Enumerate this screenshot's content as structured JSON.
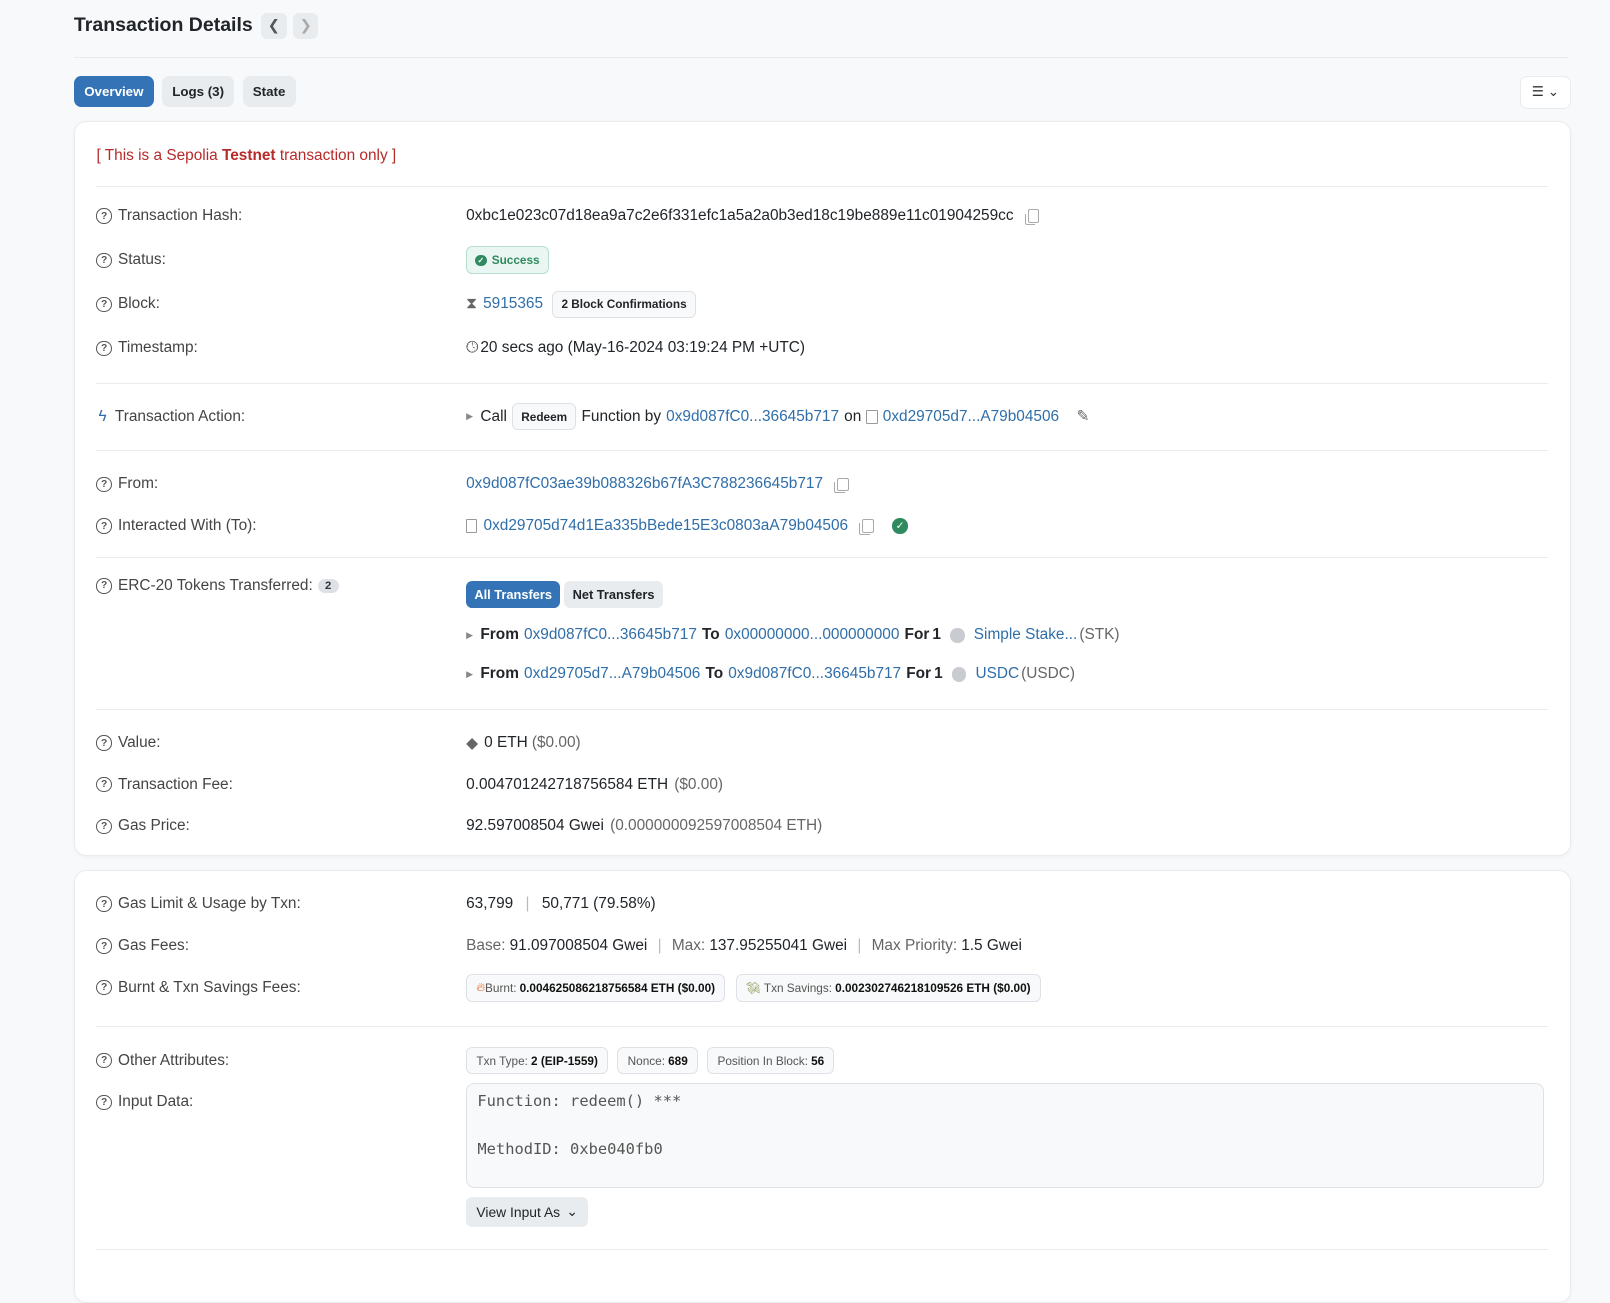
{
  "header": {
    "title": "Transaction Details",
    "prev_icon": "chevron-left-icon",
    "next_icon": "chevron-right-icon"
  },
  "tabs": [
    {
      "label": "Overview",
      "active": true
    },
    {
      "label": "Logs (3)"
    },
    {
      "label": "State"
    }
  ],
  "notice": {
    "prefix": "[ This is a Sepolia ",
    "bold": "Testnet",
    "suffix": " transaction only ]"
  },
  "overview": {
    "hash": {
      "label": "Transaction Hash:",
      "value": "0xbc1e023c07d18ea9a7c2e6f331efc1a5a2a0b3ed18c19be889e11c01904259cc"
    },
    "status": {
      "label": "Status:",
      "value": "Success"
    },
    "block": {
      "label": "Block:",
      "number": "5915365",
      "confirmations": "2 Block Confirmations"
    },
    "timestamp": {
      "label": "Timestamp:",
      "value": "20 secs ago (May-16-2024 03:19:24 PM +UTC)"
    },
    "action": {
      "label": "Transaction Action:",
      "call": "Call",
      "method": "Redeem",
      "function_by": "Function by",
      "from": "0x9d087fC0...36645b717",
      "on": "on",
      "contract": "0xd29705d7...A79b04506"
    },
    "from": {
      "label": "From:",
      "value": "0x9d087fC03ae39b088326b67fA3C788236645b717"
    },
    "to": {
      "label": "Interacted With (To):",
      "value": "0xd29705d74d1Ea335bBede15E3c0803aA79b04506"
    },
    "erc20": {
      "label": "ERC-20 Tokens Transferred:",
      "count": "2",
      "all": "All Transfers",
      "net": "Net Transfers",
      "transfers": [
        {
          "from_lbl": "From",
          "from": "0x9d087fC0...36645b717",
          "to_lbl": "To",
          "to": "0x00000000...000000000",
          "for_lbl": "For",
          "amount": "1",
          "token": "Simple Stake...",
          "symbol": "(STK)"
        },
        {
          "from_lbl": "From",
          "from": "0xd29705d7...A79b04506",
          "to_lbl": "To",
          "to": "0x9d087fC0...36645b717",
          "for_lbl": "For",
          "amount": "1",
          "token": "USDC",
          "symbol": "(USDC)"
        }
      ]
    },
    "value": {
      "label": "Value:",
      "amount": "0 ETH",
      "usd": "($0.00)"
    },
    "fee": {
      "label": "Transaction Fee:",
      "amount": "0.004701242718756584 ETH",
      "usd": "($0.00)"
    },
    "gas_price": {
      "label": "Gas Price:",
      "amount": "92.597008504 Gwei",
      "eth": "(0.000000092597008504 ETH)"
    }
  },
  "more": {
    "gas_limit": {
      "label": "Gas Limit & Usage by Txn:",
      "limit": "63,799",
      "usage": "50,771 (79.58%)"
    },
    "gas_fees": {
      "label": "Gas Fees:",
      "base_lbl": "Base:",
      "base": "91.097008504 Gwei",
      "max_lbl": "Max:",
      "max": "137.95255041 Gwei",
      "prio_lbl": "Max Priority:",
      "prio": "1.5 Gwei"
    },
    "burnt": {
      "label": "Burnt & Txn Savings Fees:",
      "burnt_lbl": "Burnt:",
      "burnt": "0.004625086218756584 ETH ($0.00)",
      "savings_lbl": "Txn Savings:",
      "savings": "0.002302746218109526 ETH ($0.00)"
    },
    "other": {
      "label": "Other Attributes:",
      "type_lbl": "Txn Type:",
      "type": "2 (EIP-1559)",
      "nonce_lbl": "Nonce:",
      "nonce": "689",
      "pos_lbl": "Position In Block:",
      "pos": "56"
    },
    "input": {
      "label": "Input Data:",
      "text": "Function: redeem() ***\n\nMethodID: 0xbe040fb0",
      "view_as": "View Input As"
    }
  },
  "colors": {
    "accent": "#3474b6",
    "link": "#2f6ea9",
    "success": "#2f8a5f",
    "testnet": "#b72a2a"
  }
}
